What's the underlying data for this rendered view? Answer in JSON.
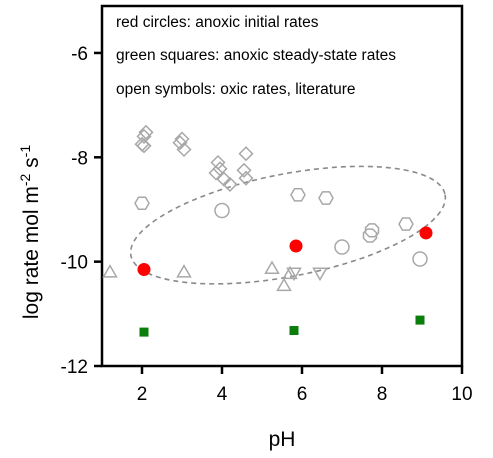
{
  "chart_data": {
    "type": "scatter",
    "xlabel": "pH",
    "ylabel": {
      "prefix": "log rate mol m",
      "sup1": "-2",
      "mid": " s",
      "sup2": "-1"
    },
    "xlim": [
      1,
      10
    ],
    "ylim": [
      -12,
      -5.1
    ],
    "xticks": [
      2,
      4,
      6,
      8,
      10
    ],
    "yticks": [
      -12,
      -10,
      -8,
      -6
    ],
    "grid": false,
    "annotations": [
      "red circles: anoxic initial rates",
      "green squares: anoxic steady-state rates",
      "open symbols: oxic rates, literature"
    ],
    "colors": {
      "red": "#ff0000",
      "green": "#0a7d0a",
      "open": "#a8a8a8",
      "ellipse": "#8a8a8a"
    },
    "series": [
      {
        "marker": "filled-circle",
        "color": "#ff0000",
        "points": [
          [
            2.05,
            -10.15
          ],
          [
            5.85,
            -9.7
          ],
          [
            9.1,
            -9.45
          ]
        ]
      },
      {
        "marker": "filled-square",
        "color": "#0a7d0a",
        "points": [
          [
            2.05,
            -11.35
          ],
          [
            5.8,
            -11.32
          ],
          [
            8.95,
            -11.12
          ]
        ]
      },
      {
        "marker": "open-diamond",
        "color": "#a8a8a8",
        "points": [
          [
            2.0,
            -7.75
          ],
          [
            2.05,
            -7.6
          ],
          [
            2.1,
            -7.52
          ],
          [
            2.05,
            -7.78
          ],
          [
            3.0,
            -7.65
          ],
          [
            3.05,
            -7.85
          ],
          [
            2.95,
            -7.72
          ],
          [
            3.9,
            -8.1
          ],
          [
            3.95,
            -8.22
          ],
          [
            3.85,
            -8.3
          ],
          [
            4.05,
            -8.42
          ],
          [
            4.2,
            -8.52
          ],
          [
            4.55,
            -8.25
          ],
          [
            4.6,
            -8.4
          ],
          [
            4.6,
            -7.93
          ]
        ]
      },
      {
        "marker": "open-hexagon",
        "color": "#a8a8a8",
        "points": [
          [
            2.0,
            -8.88
          ],
          [
            5.9,
            -8.72
          ],
          [
            6.6,
            -8.78
          ],
          [
            8.6,
            -9.28
          ]
        ]
      },
      {
        "marker": "open-circle",
        "color": "#a8a8a8",
        "points": [
          [
            4.0,
            -9.02
          ],
          [
            7.0,
            -9.72
          ],
          [
            8.95,
            -9.95
          ]
        ]
      },
      {
        "marker": "open-octagon",
        "color": "#a8a8a8",
        "points": [
          [
            7.75,
            -9.4
          ],
          [
            7.7,
            -9.5
          ]
        ]
      },
      {
        "marker": "open-triangle-up",
        "color": "#a8a8a8",
        "points": [
          [
            1.2,
            -10.22
          ],
          [
            3.05,
            -10.22
          ],
          [
            5.25,
            -10.15
          ],
          [
            5.55,
            -10.48
          ],
          [
            5.7,
            -10.25
          ]
        ]
      },
      {
        "marker": "open-triangle-down",
        "color": "#a8a8a8",
        "points": [
          [
            5.8,
            -10.2
          ],
          [
            6.45,
            -10.2
          ]
        ]
      }
    ],
    "ellipse": {
      "cx": 5.65,
      "cy": -9.3,
      "rx": 4.0,
      "ry": 0.98,
      "angle_deg": -11
    }
  }
}
